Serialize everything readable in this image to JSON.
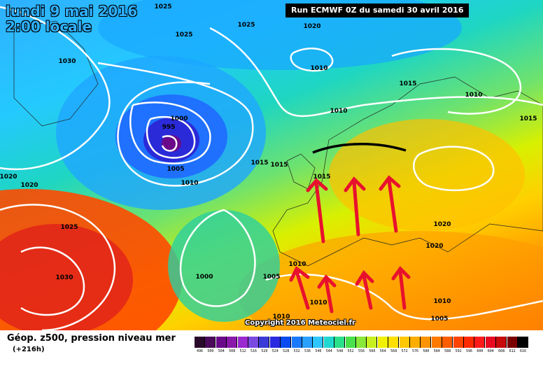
{
  "header": {
    "date_line1": "lundi 9 mai 2016",
    "date_line2": "2:00 locale",
    "run_label": "Run ECMWF 0Z du samedi 30 avril 2016"
  },
  "map": {
    "isobar_labels": [
      "1025",
      "1025",
      "1025",
      "1020",
      "1030",
      "1010",
      "1010",
      "1015",
      "1010",
      "1000",
      "995",
      "1005",
      "1010",
      "1015",
      "1015",
      "1015",
      "1020",
      "1020",
      "1020",
      "1020",
      "1025",
      "1030",
      "1000",
      "1005",
      "1010",
      "1010",
      "1010",
      "1005",
      "1015",
      "1010"
    ],
    "copyright": "Copyright 2016 Meteociel.fr",
    "colors": {
      "front_line": "#000000",
      "arrows": "#e8112d",
      "isobars": "#ffffff"
    }
  },
  "legend": {
    "title": "Géop. z500, pression niveau mer",
    "subtitle": "(+216h)",
    "scale_values": [
      "496",
      "500",
      "504",
      "508",
      "512",
      "516",
      "520",
      "524",
      "528",
      "532",
      "536",
      "540",
      "544",
      "548",
      "552",
      "556",
      "560",
      "564",
      "568",
      "572",
      "576",
      "580",
      "584",
      "588",
      "592",
      "596",
      "600",
      "604",
      "608",
      "612",
      "616"
    ],
    "scale_colors": [
      "#2a0a2a",
      "#4b0a5a",
      "#6a0a8a",
      "#8a1aaa",
      "#9a2ad0",
      "#7a4ae0",
      "#3a3ad8",
      "#2a2ae0",
      "#0a4af0",
      "#1a7aff",
      "#2aa0ff",
      "#2fc6ff",
      "#20d8d0",
      "#2ae08a",
      "#4ae04a",
      "#8ae83a",
      "#c8f020",
      "#f0f000",
      "#ffe000",
      "#ffc800",
      "#ffae00",
      "#ff9400",
      "#ff7a00",
      "#ff5e00",
      "#ff4400",
      "#ff2a00",
      "#ff1a1a",
      "#e80a20",
      "#c80a0a",
      "#7a0000",
      "#000000"
    ]
  }
}
